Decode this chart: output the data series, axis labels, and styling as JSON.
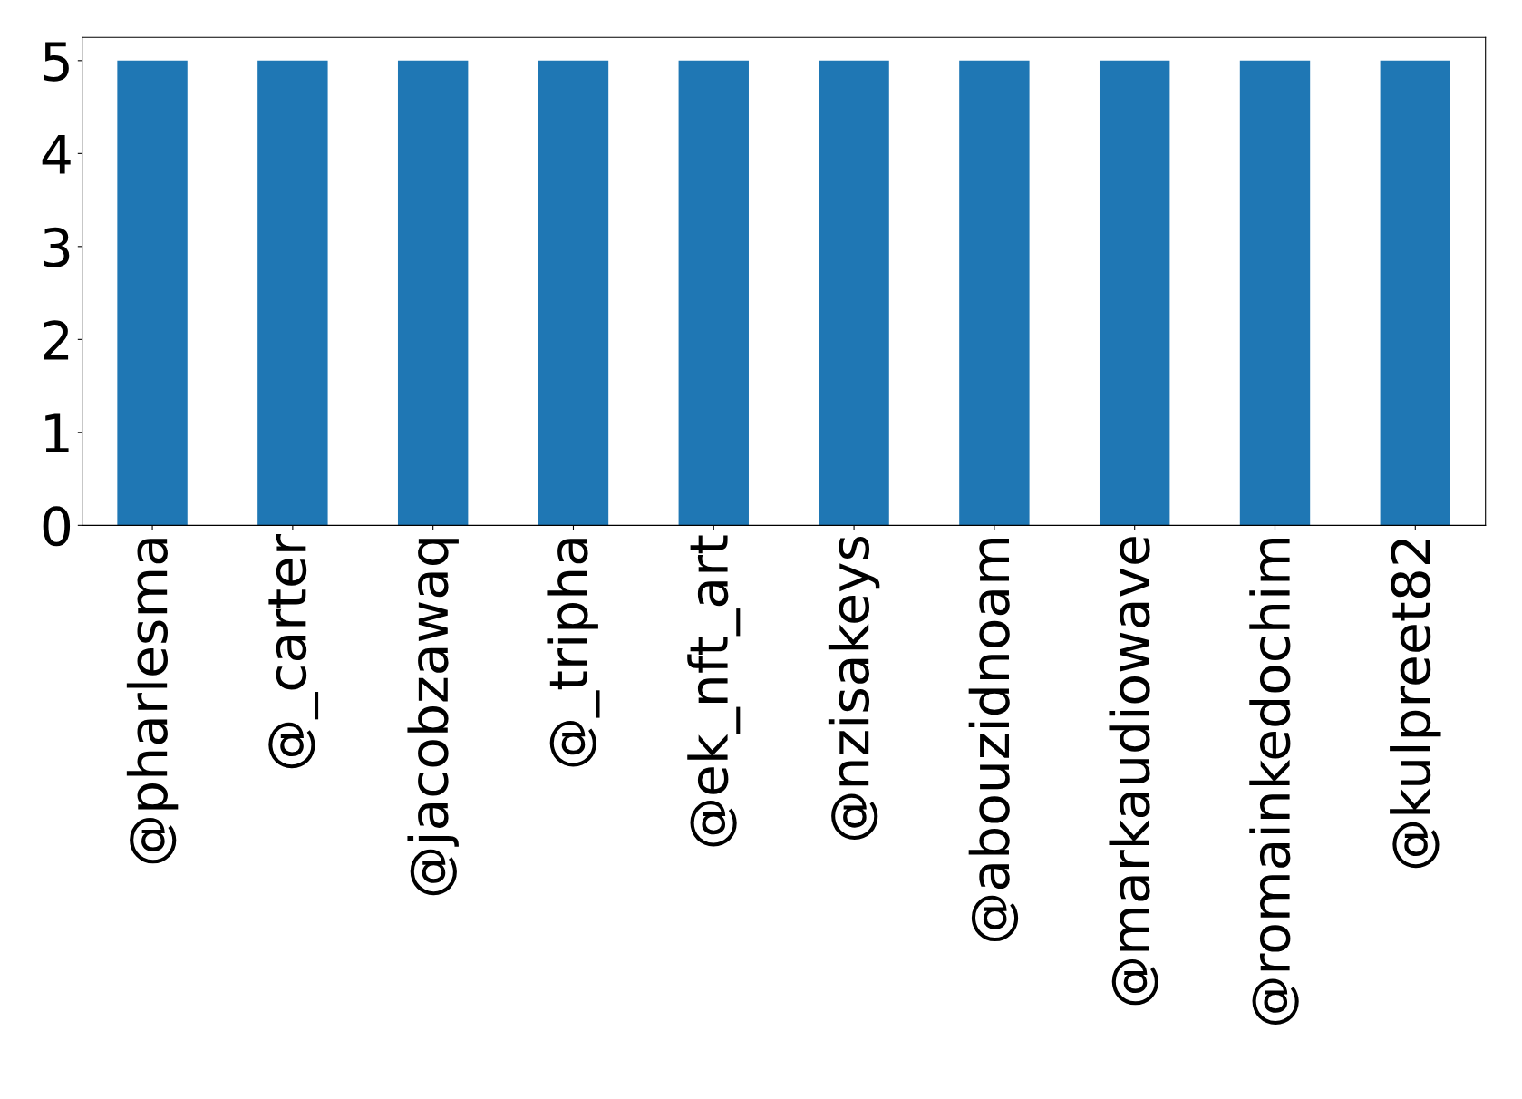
{
  "chart_data": {
    "type": "bar",
    "categories": [
      "@pharlesma",
      "@_carter",
      "@jacobzawaq",
      "@_tripha",
      "@ek_nft_art",
      "@nzisakeys",
      "@abouzidnoam",
      "@markaudiowave",
      "@romainkedochim",
      "@kulpreet82"
    ],
    "values": [
      5,
      5,
      5,
      5,
      5,
      5,
      5,
      5,
      5,
      5
    ],
    "color": "#1f77b4",
    "ylim": [
      0,
      5.25
    ],
    "yticks": [
      0,
      1,
      2,
      3,
      4,
      5
    ],
    "grid": false,
    "legend": false
  }
}
